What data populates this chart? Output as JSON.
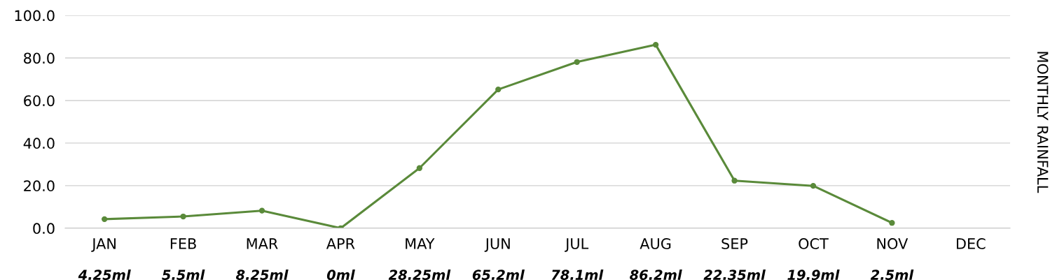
{
  "chart_data": {
    "type": "line",
    "ylabel": "MONTHLY RAINFALL",
    "categories": [
      "JAN",
      "FEB",
      "MAR",
      "APR",
      "MAY",
      "JUN",
      "JUL",
      "AUG",
      "SEP",
      "OCT",
      "NOV",
      "DEC"
    ],
    "series": [
      {
        "color": "#5a8a3a",
        "values": [
          4.25,
          5.5,
          8.25,
          0,
          28.25,
          65.2,
          78.1,
          86.2,
          22.35,
          19.9,
          2.5,
          null
        ],
        "value_labels": [
          "4.25ml",
          "5.5ml",
          "8.25ml",
          "0ml",
          "28.25ml",
          "65.2ml",
          "78.1ml",
          "86.2ml",
          "22.35ml",
          "19.9ml",
          "2.5ml",
          null
        ]
      }
    ],
    "ylim": [
      0,
      100
    ],
    "yticks": [
      {
        "value": 0,
        "label": "0.0"
      },
      {
        "value": 20,
        "label": "20.0"
      },
      {
        "value": 40,
        "label": "40.0"
      },
      {
        "value": 60,
        "label": "60.0"
      },
      {
        "value": 80,
        "label": "80.0"
      },
      {
        "value": 100,
        "label": "100.0"
      }
    ],
    "grid": "y",
    "marker": "circle",
    "line_style": "solid",
    "legend": false
  }
}
